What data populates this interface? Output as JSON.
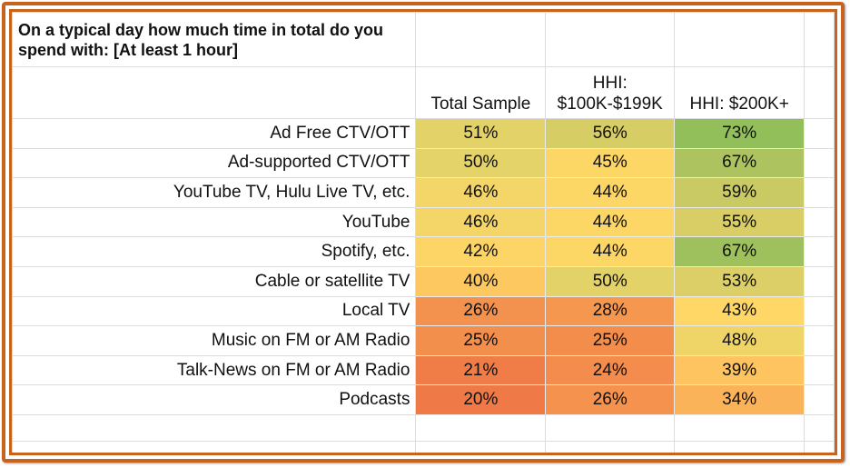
{
  "chart_data": {
    "type": "heatmap",
    "title": "On a typical day how much time in total do you spend with: [At least 1 hour]",
    "columns": [
      "Total Sample",
      "HHI: $100K-$199K",
      "HHI: $200K+"
    ],
    "rows": [
      {
        "label": "Ad Free CTV/OTT",
        "values": [
          "51%",
          "56%",
          "73%"
        ],
        "colors": [
          "#e3d268",
          "#d6cd65",
          "#93bf5b"
        ]
      },
      {
        "label": "Ad-supported CTV/OTT",
        "values": [
          "50%",
          "45%",
          "67%"
        ],
        "colors": [
          "#e4d368",
          "#fdd766",
          "#adc360"
        ]
      },
      {
        "label": "YouTube TV, Hulu Live TV, etc.",
        "values": [
          "46%",
          "44%",
          "59%"
        ],
        "colors": [
          "#f3d568",
          "#fdd766",
          "#c9ca63"
        ]
      },
      {
        "label": "YouTube",
        "values": [
          "46%",
          "44%",
          "55%"
        ],
        "colors": [
          "#f3d568",
          "#fdd766",
          "#d9cd66"
        ]
      },
      {
        "label": "Spotify, etc.",
        "values": [
          "42%",
          "44%",
          "67%"
        ],
        "colors": [
          "#fdd566",
          "#fdd766",
          "#9fc15d"
        ]
      },
      {
        "label": "Cable or satellite TV",
        "values": [
          "40%",
          "50%",
          "53%"
        ],
        "colors": [
          "#fdc860",
          "#e3d268",
          "#dccf67"
        ]
      },
      {
        "label": "Local TV",
        "values": [
          "26%",
          "28%",
          "43%"
        ],
        "colors": [
          "#f3914e",
          "#f5974f",
          "#fed766"
        ]
      },
      {
        "label": "Music on FM or AM Radio",
        "values": [
          "25%",
          "25%",
          "48%"
        ],
        "colors": [
          "#f38f4c",
          "#f38d4c",
          "#efd468"
        ]
      },
      {
        "label": "Talk-News on FM or AM Radio",
        "values": [
          "21%",
          "24%",
          "39%"
        ],
        "colors": [
          "#f07c48",
          "#f38c4c",
          "#fdc45f"
        ]
      },
      {
        "label": "Podcasts",
        "values": [
          "20%",
          "26%",
          "34%"
        ],
        "colors": [
          "#f07a47",
          "#f5934e",
          "#fbb35a"
        ]
      }
    ]
  },
  "frame_color": "#c8621c"
}
